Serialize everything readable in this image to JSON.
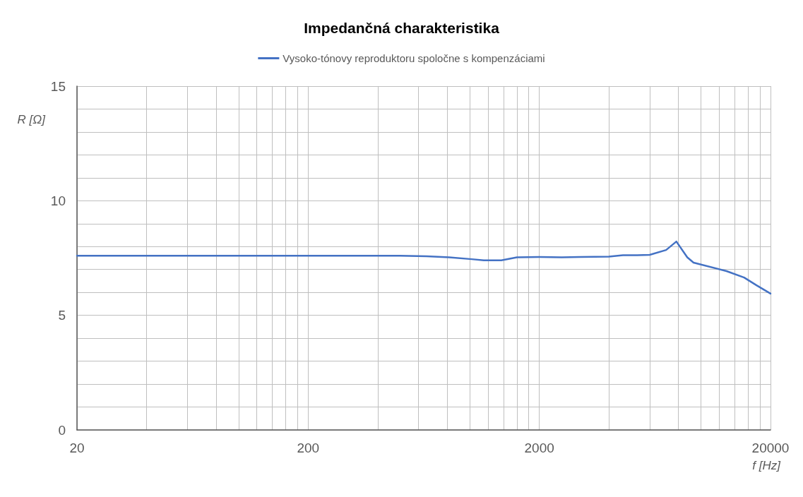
{
  "chart_data": {
    "type": "line",
    "title": "Impedančná charakteristika",
    "xlabel": "f [Hz]",
    "ylabel": "R [Ω]",
    "log": "x",
    "grid": true,
    "legend": "top",
    "marker": "none",
    "line_style": "solid",
    "xlim": [
      20,
      20000
    ],
    "xticks": [
      20,
      {
        "value": 40,
        "label": null
      },
      {
        "value": 60,
        "label": null
      },
      {
        "value": 80,
        "label": null
      },
      {
        "value": 100,
        "label": null
      },
      {
        "value": 120,
        "label": null
      },
      {
        "value": 140,
        "label": null
      },
      {
        "value": 160,
        "label": null
      },
      {
        "value": 180,
        "label": null
      },
      200,
      {
        "value": 400,
        "label": null
      },
      {
        "value": 600,
        "label": null
      },
      {
        "value": 800,
        "label": null
      },
      {
        "value": 1000,
        "label": null
      },
      {
        "value": 1200,
        "label": null
      },
      {
        "value": 1400,
        "label": null
      },
      {
        "value": 1600,
        "label": null
      },
      {
        "value": 1800,
        "label": null
      },
      2000,
      {
        "value": 4000,
        "label": null
      },
      {
        "value": 6000,
        "label": null
      },
      {
        "value": 8000,
        "label": null
      },
      {
        "value": 10000,
        "label": null
      },
      {
        "value": 12000,
        "label": null
      },
      {
        "value": 14000,
        "label": null
      },
      {
        "value": 16000,
        "label": null
      },
      {
        "value": 18000,
        "label": null
      },
      20000
    ],
    "ylim": [
      0,
      15
    ],
    "yticks": [
      0,
      {
        "value": 1,
        "label": null
      },
      {
        "value": 2,
        "label": null
      },
      {
        "value": 3,
        "label": null
      },
      {
        "value": 4,
        "label": null
      },
      5,
      {
        "value": 6,
        "label": null
      },
      {
        "value": 7,
        "label": null
      },
      {
        "value": 8,
        "label": null
      },
      {
        "value": 9,
        "label": null
      },
      10,
      {
        "value": 11,
        "label": null
      },
      {
        "value": 12,
        "label": null
      },
      {
        "value": 13,
        "label": null
      },
      {
        "value": 14,
        "label": null
      },
      15
    ],
    "x": [
      20,
      30,
      40,
      60,
      100,
      150,
      200,
      300,
      400,
      500,
      650,
      815,
      1020,
      1150,
      1370,
      1600,
      2000,
      2500,
      3000,
      4000,
      4600,
      5300,
      6000,
      7070,
      7830,
      8730,
      9290,
      12900,
      15380,
      17400,
      20000
    ],
    "series": [
      {
        "name": "Vysoko-tónovy reproduktoru spoločne s kompenzáciami",
        "color": "#4472c4",
        "values": [
          7.6,
          7.6,
          7.6,
          7.6,
          7.6,
          7.6,
          7.6,
          7.6,
          7.6,
          7.6,
          7.58,
          7.53,
          7.45,
          7.4,
          7.4,
          7.53,
          7.55,
          7.53,
          7.55,
          7.56,
          7.62,
          7.62,
          7.64,
          7.85,
          8.22,
          7.53,
          7.3,
          6.93,
          6.65,
          6.31,
          5.95
        ]
      }
    ]
  }
}
